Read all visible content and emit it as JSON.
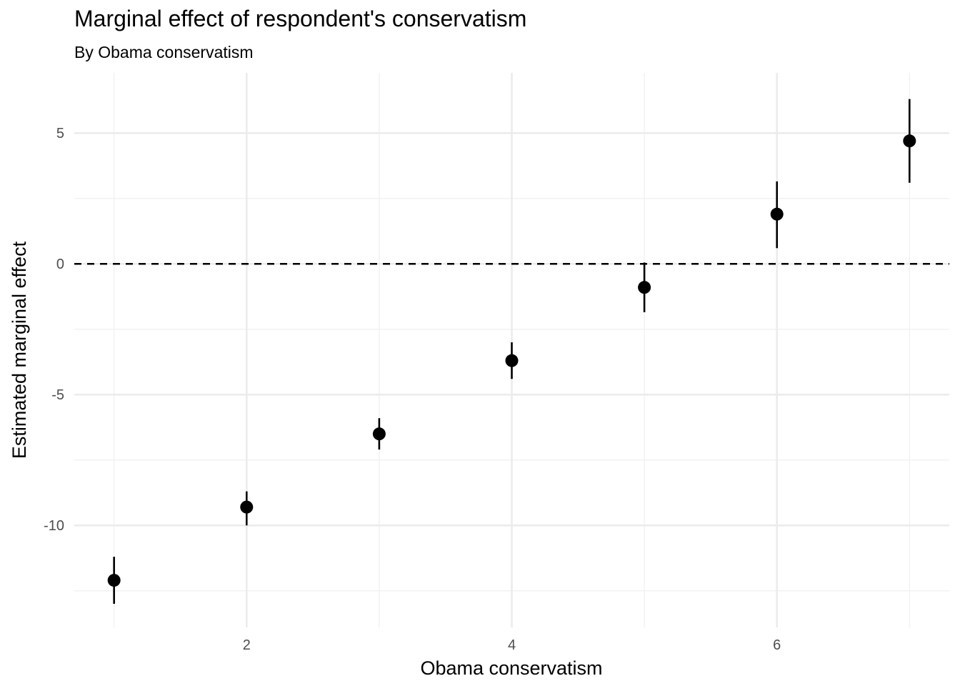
{
  "chart_data": {
    "type": "scatter",
    "title": "Marginal effect of respondent's conservatism",
    "subtitle": "By Obama conservatism",
    "xlabel": "Obama conservatism",
    "ylabel": "Estimated marginal effect",
    "xlim": [
      0.7,
      7.3
    ],
    "ylim": [
      -13.9,
      7.3
    ],
    "x_ticks": [
      2,
      4,
      6
    ],
    "x_tick_labels": [
      "2",
      "4",
      "6"
    ],
    "y_ticks": [
      5,
      0,
      -5,
      -10
    ],
    "y_tick_labels": [
      "5",
      "0",
      "-5",
      "-10"
    ],
    "grid": true,
    "reference_line": {
      "y": 0,
      "style": "dashed"
    },
    "points": [
      {
        "x": 1,
        "y": -12.1,
        "lower": -13.0,
        "upper": -11.2
      },
      {
        "x": 2,
        "y": -9.3,
        "lower": -10.0,
        "upper": -8.7
      },
      {
        "x": 3,
        "y": -6.5,
        "lower": -7.1,
        "upper": -5.9
      },
      {
        "x": 4,
        "y": -3.7,
        "lower": -4.4,
        "upper": -3.0
      },
      {
        "x": 5,
        "y": -0.9,
        "lower": -1.85,
        "upper": 0.05
      },
      {
        "x": 6,
        "y": 1.9,
        "lower": 0.6,
        "upper": 3.15
      },
      {
        "x": 7,
        "y": 4.7,
        "lower": 3.1,
        "upper": 6.3
      }
    ],
    "colors": {
      "points": "#000000",
      "major_grid": "#ebebeb",
      "minor_grid": "#f2f2f2",
      "tick_text": "#4d4d4d"
    }
  }
}
